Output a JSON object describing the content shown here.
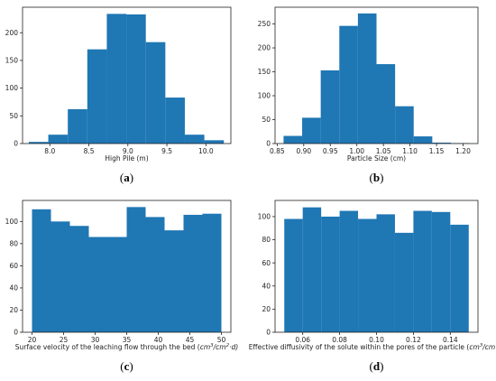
{
  "chart_data": [
    {
      "type": "bar",
      "panel_label": "a",
      "xlabel": "High Pile (m)",
      "ylabel": "",
      "bin_edges": [
        7.73,
        7.98,
        8.23,
        8.48,
        8.73,
        8.98,
        9.23,
        9.48,
        9.73,
        9.98,
        10.23
      ],
      "values": [
        3,
        16,
        62,
        170,
        234,
        233,
        183,
        83,
        16,
        6
      ],
      "xlim": [
        7.65,
        10.32
      ],
      "ylim": [
        0,
        246
      ],
      "xticks": [
        8.0,
        8.5,
        9.0,
        9.5,
        10.0
      ],
      "xtick_labels": [
        "8.0",
        "8.5",
        "9.0",
        "9.5",
        "10.0"
      ],
      "yticks": [
        0,
        50,
        100,
        150,
        200
      ],
      "ytick_labels": [
        "0",
        "50",
        "100",
        "150",
        "200"
      ],
      "color": "#1f77b4"
    },
    {
      "type": "bar",
      "panel_label": "b",
      "xlabel": "Particle Size (cm)",
      "ylabel": "",
      "bin_edges": [
        0.862,
        0.897,
        0.932,
        0.967,
        1.002,
        1.037,
        1.072,
        1.107,
        1.142,
        1.177,
        1.212
      ],
      "values": [
        16,
        54,
        153,
        246,
        272,
        166,
        78,
        15,
        2,
        1
      ],
      "xlim": [
        0.846,
        1.228
      ],
      "ylim": [
        0,
        285
      ],
      "xticks": [
        0.85,
        0.9,
        0.95,
        1.0,
        1.05,
        1.1,
        1.15,
        1.2
      ],
      "xtick_labels": [
        "0.85",
        "0.90",
        "0.95",
        "1.00",
        "1.05",
        "1.10",
        "1.15",
        "1.20"
      ],
      "yticks": [
        0,
        50,
        100,
        150,
        200,
        250
      ],
      "ytick_labels": [
        "0",
        "50",
        "100",
        "150",
        "200",
        "250"
      ],
      "color": "#1f77b4"
    },
    {
      "type": "bar",
      "panel_label": "c",
      "xlabel": "Surface velocity of the leaching flow through the bed (",
      "xlabel_unit_num": "cm",
      "xlabel_unit_num_sup": "3",
      "xlabel_unit_den": "/cm",
      "xlabel_unit_den_sup": "2",
      "xlabel_unit_tail": "·d)",
      "ylabel": "",
      "bin_edges": [
        20,
        23,
        26,
        29,
        32,
        35,
        38,
        41,
        44,
        47,
        50
      ],
      "values": [
        111,
        100,
        96,
        86,
        86,
        113,
        104,
        92,
        106,
        107
      ],
      "xlim": [
        18.5,
        51.5
      ],
      "ylim": [
        0,
        119
      ],
      "xticks": [
        20,
        25,
        30,
        35,
        40,
        45,
        50
      ],
      "xtick_labels": [
        "20",
        "25",
        "30",
        "35",
        "40",
        "45",
        "50"
      ],
      "yticks": [
        0,
        20,
        40,
        60,
        80,
        100
      ],
      "ytick_labels": [
        "0",
        "20",
        "40",
        "60",
        "80",
        "100"
      ],
      "color": "#1f77b4"
    },
    {
      "type": "bar",
      "panel_label": "d",
      "xlabel": "Effective diffusivity of the solute within the pores of the particle (",
      "xlabel_unit_num": "cm",
      "xlabel_unit_num_sup": "3",
      "xlabel_unit_den": "/cm·d)",
      "ylabel": "",
      "bin_edges": [
        0.05,
        0.06,
        0.07,
        0.08,
        0.09,
        0.1,
        0.11,
        0.12,
        0.13,
        0.14,
        0.15
      ],
      "values": [
        98,
        108,
        100,
        105,
        98,
        102,
        86,
        105,
        104,
        93
      ],
      "xlim": [
        0.045,
        0.155
      ],
      "ylim": [
        0,
        114
      ],
      "xticks": [
        0.06,
        0.08,
        0.1,
        0.12,
        0.14
      ],
      "xtick_labels": [
        "0.06",
        "0.08",
        "0.10",
        "0.12",
        "0.14"
      ],
      "yticks": [
        0,
        20,
        40,
        60,
        80,
        100
      ],
      "ytick_labels": [
        "0",
        "20",
        "40",
        "60",
        "80",
        "100"
      ],
      "color": "#1f77b4"
    }
  ]
}
